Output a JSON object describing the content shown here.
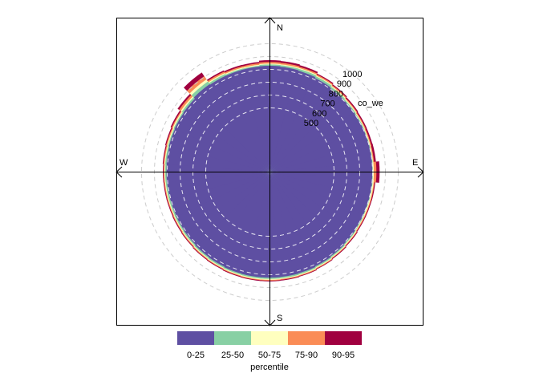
{
  "chart_data": {
    "type": "polar-percentile-rose",
    "pollutant_label": "co_we",
    "ring_labels": [
      "500",
      "600",
      "700",
      "800",
      "900",
      "1000"
    ],
    "ring_values": [
      500,
      600,
      700,
      800,
      900,
      1000
    ],
    "r_origin": 0,
    "compass": {
      "north": "N",
      "east": "E",
      "south": "S",
      "west": "W"
    },
    "legend": {
      "title": "percentile",
      "placement": "bottom",
      "entries": [
        {
          "label": "0-25",
          "color": "#5E4FA2"
        },
        {
          "label": "25-50",
          "color": "#88D0A4"
        },
        {
          "label": "50-75",
          "color": "#FFFFBF"
        },
        {
          "label": "75-90",
          "color": "#FA8C56"
        },
        {
          "label": "90-95",
          "color": "#A0003F"
        }
      ]
    },
    "series_colors": [
      "#5E4FA2",
      "#88D0A4",
      "#FFFFBF",
      "#FA8C56",
      "#A0003F"
    ],
    "directions_deg": [
      0,
      10,
      20,
      30,
      40,
      50,
      60,
      70,
      80,
      90,
      100,
      110,
      120,
      130,
      140,
      150,
      160,
      170,
      180,
      190,
      200,
      210,
      220,
      230,
      240,
      250,
      260,
      270,
      280,
      290,
      300,
      310,
      320,
      330,
      340,
      350
    ],
    "series": [
      {
        "percentile": "0-25",
        "values": [
          828,
          824,
          820,
          812,
          805,
          803,
          800,
          800,
          799,
          798,
          800,
          800,
          800,
          805,
          810,
          815,
          820,
          822,
          823,
          823,
          822,
          818,
          815,
          810,
          807,
          805,
          805,
          806,
          808,
          812,
          815,
          818,
          830,
          825,
          825,
          826
        ]
      },
      {
        "percentile": "25-50",
        "values": [
          838,
          836,
          835,
          828,
          818,
          812,
          808,
          805,
          804,
          802,
          804,
          805,
          807,
          812,
          818,
          824,
          830,
          832,
          833,
          833,
          832,
          828,
          825,
          820,
          817,
          815,
          815,
          816,
          818,
          820,
          824,
          832,
          855,
          840,
          834,
          833
        ]
      },
      {
        "percentile": "50-75",
        "values": [
          845,
          843,
          842,
          834,
          825,
          818,
          813,
          810,
          808,
          810,
          812,
          812,
          812,
          818,
          824,
          830,
          836,
          838,
          840,
          840,
          838,
          834,
          831,
          826,
          823,
          821,
          821,
          822,
          824,
          827,
          832,
          842,
          875,
          848,
          841,
          840
        ]
      },
      {
        "percentile": "75-90",
        "values": [
          858,
          856,
          852,
          843,
          833,
          825,
          820,
          817,
          815,
          830,
          818,
          818,
          818,
          823,
          829,
          836,
          842,
          844,
          846,
          846,
          844,
          840,
          837,
          832,
          829,
          827,
          827,
          828,
          831,
          835,
          840,
          858,
          905,
          860,
          852,
          852
        ]
      },
      {
        "percentile": "90-95",
        "values": [
          872,
          870,
          865,
          851,
          841,
          834,
          829,
          828,
          830,
          855,
          825,
          824,
          824,
          829,
          835,
          841,
          847,
          850,
          852,
          852,
          850,
          846,
          843,
          838,
          835,
          833,
          833,
          834,
          838,
          843,
          850,
          872,
          940,
          870,
          863,
          862
        ]
      }
    ]
  }
}
